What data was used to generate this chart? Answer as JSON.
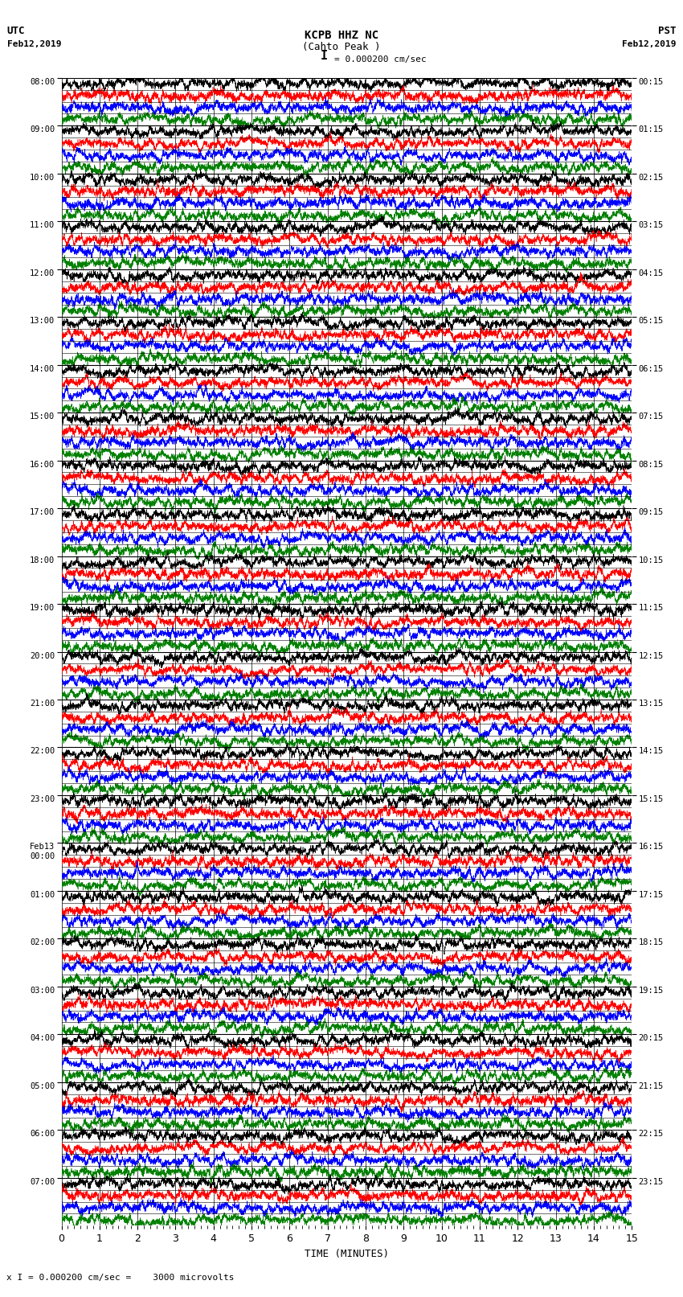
{
  "title_line1": "KCPB HHZ NC",
  "title_line2": "(Cahto Peak )",
  "scale_label": "= 0.000200 cm/sec",
  "scale_bar_char": "I",
  "bottom_label": "x I = 0.000200 cm/sec =    3000 microvolts",
  "utc_label": "UTC",
  "pst_label": "PST",
  "date_left": "Feb12,2019",
  "date_right": "Feb12,2019",
  "xlabel": "TIME (MINUTES)",
  "left_times": [
    "08:00",
    "09:00",
    "10:00",
    "11:00",
    "12:00",
    "13:00",
    "14:00",
    "15:00",
    "16:00",
    "17:00",
    "18:00",
    "19:00",
    "20:00",
    "21:00",
    "22:00",
    "23:00",
    "Feb13\n00:00",
    "01:00",
    "02:00",
    "03:00",
    "04:00",
    "05:00",
    "06:00",
    "07:00"
  ],
  "right_times": [
    "00:15",
    "01:15",
    "02:15",
    "03:15",
    "04:15",
    "05:15",
    "06:15",
    "07:15",
    "08:15",
    "09:15",
    "10:15",
    "11:15",
    "12:15",
    "13:15",
    "14:15",
    "15:15",
    "16:15",
    "17:15",
    "18:15",
    "19:15",
    "20:15",
    "21:15",
    "22:15",
    "23:15"
  ],
  "n_rows": 24,
  "n_subrows": 4,
  "n_minutes": 15,
  "colors": [
    "black",
    "red",
    "blue",
    "green"
  ],
  "bg_color": "white",
  "noise_seed": 42
}
